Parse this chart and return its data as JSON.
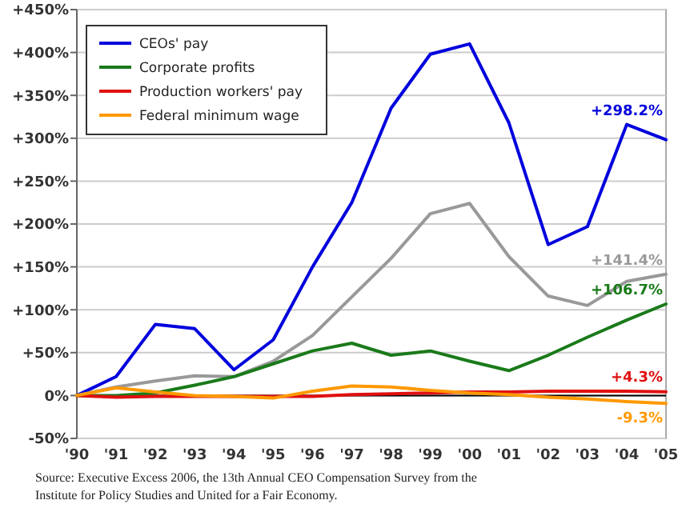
{
  "chart_data": {
    "type": "line",
    "categories": [
      "'90",
      "'91",
      "'92",
      "'93",
      "'94",
      "'95",
      "'96",
      "'97",
      "'98",
      "'99",
      "'00",
      "'01",
      "'02",
      "'03",
      "'04",
      "'05"
    ],
    "series": [
      {
        "name": "CEOs' pay",
        "color": "#0000dd",
        "values": [
          0,
          22,
          83,
          78,
          30,
          65,
          150,
          225,
          335,
          398,
          410,
          318,
          176,
          197,
          316,
          298.2
        ],
        "value_labels": [
          null,
          null,
          null,
          null,
          null,
          null,
          null,
          null,
          null,
          null,
          null,
          null,
          null,
          null,
          null,
          "+298.2%"
        ]
      },
      {
        "color": "#999999",
        "values": [
          0,
          10,
          17,
          23,
          22,
          40,
          70,
          115,
          160,
          212,
          224,
          162,
          116,
          105,
          133,
          141.4
        ],
        "value_labels": [
          null,
          null,
          null,
          null,
          null,
          null,
          null,
          null,
          null,
          null,
          null,
          null,
          null,
          null,
          null,
          "+141.4%"
        ]
      },
      {
        "name": "Corporate profits",
        "color": "#1a7a1a",
        "values": [
          0,
          0,
          3,
          12,
          22,
          37,
          52,
          61,
          47,
          52,
          40,
          29,
          47,
          68,
          88,
          106.7
        ],
        "value_labels": [
          null,
          null,
          null,
          null,
          null,
          null,
          null,
          null,
          null,
          null,
          null,
          null,
          null,
          null,
          null,
          "+106.7%"
        ]
      },
      {
        "name": "Production workers' pay",
        "color": "#e01010",
        "values": [
          0,
          -2,
          -1,
          -1,
          -1,
          -1,
          -1,
          1,
          2,
          3,
          4,
          4,
          5,
          5,
          5,
          4.3
        ],
        "value_labels": [
          null,
          null,
          null,
          null,
          null,
          null,
          null,
          null,
          null,
          null,
          null,
          null,
          null,
          null,
          null,
          "+4.3%"
        ]
      },
      {
        "name": "Federal minimum wage",
        "color": "#ff9900",
        "values": [
          0,
          9,
          4,
          0,
          -1,
          -3,
          5,
          11,
          10,
          6,
          3,
          1,
          -2,
          -4,
          -7,
          -9.3
        ],
        "value_labels": [
          null,
          null,
          null,
          null,
          null,
          null,
          null,
          null,
          null,
          null,
          null,
          null,
          null,
          null,
          null,
          "-9.3%"
        ]
      }
    ],
    "ylim": [
      -50,
      450
    ],
    "yticks": [
      {
        "value": -50,
        "label": "-50%"
      },
      {
        "value": 0,
        "label": "0%"
      },
      {
        "value": 50,
        "label": "+50%"
      },
      {
        "value": 100,
        "label": "+100%"
      },
      {
        "value": 150,
        "label": "+150%"
      },
      {
        "value": 200,
        "label": "+200%"
      },
      {
        "value": 250,
        "label": "+250%"
      },
      {
        "value": 300,
        "label": "+300%"
      },
      {
        "value": 350,
        "label": "+350%"
      },
      {
        "value": 400,
        "label": "+400%"
      },
      {
        "value": 450,
        "label": "+450%"
      }
    ],
    "grid": "y",
    "legend": "top left",
    "marker": "none",
    "line_style": "solid",
    "ref_lines": [
      {
        "axis": "y",
        "value": 0,
        "color": "#000000"
      }
    ],
    "annotations": [
      "Source: Executive Excess 2006, the 13th Annual CEO Compensation Survey from the Institute for Policy Studies and United for a Fair Economy."
    ]
  }
}
